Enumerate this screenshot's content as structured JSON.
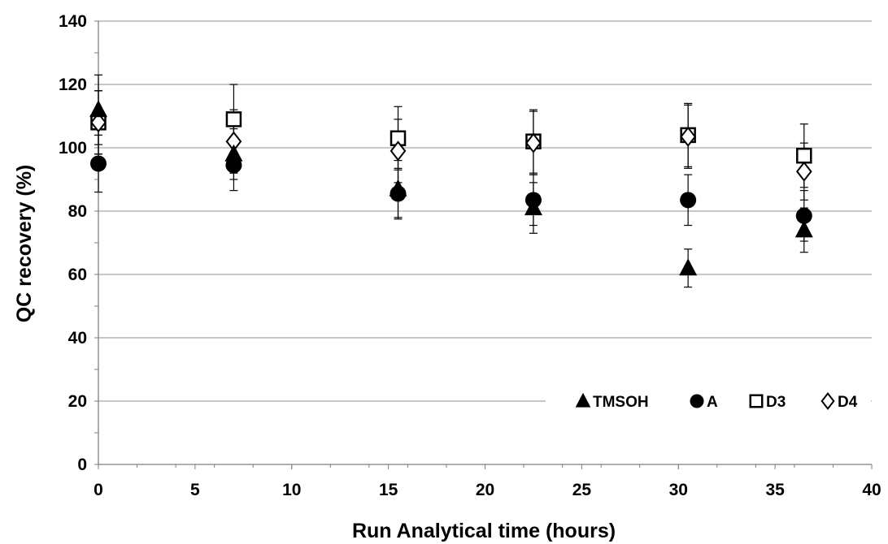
{
  "chart_data": {
    "type": "scatter",
    "xlabel": "Run Analytical time (hours)",
    "ylabel": "QC recovery (%)",
    "xlim": [
      0,
      40
    ],
    "ylim": [
      0,
      140
    ],
    "xticks": [
      0,
      5,
      10,
      15,
      20,
      25,
      30,
      35,
      40
    ],
    "yticks": [
      0,
      20,
      40,
      60,
      80,
      100,
      120,
      140
    ],
    "grid": "horizontal",
    "legend_position": "bottom-right",
    "series": [
      {
        "name": "TMSOH",
        "marker": "filled-triangle",
        "color": "#000000",
        "points": [
          {
            "x": 0,
            "y": 112,
            "err": 11
          },
          {
            "x": 7,
            "y": 98,
            "err": 8
          },
          {
            "x": 15.5,
            "y": 87,
            "err": 9
          },
          {
            "x": 22.5,
            "y": 81,
            "err": 8
          },
          {
            "x": 30.5,
            "y": 62,
            "err": 6
          },
          {
            "x": 36.5,
            "y": 74,
            "err": 7
          }
        ]
      },
      {
        "name": "A",
        "marker": "filled-circle",
        "color": "#000000",
        "points": [
          {
            "x": 0,
            "y": 95,
            "err": 9
          },
          {
            "x": 7,
            "y": 94.5,
            "err": 8
          },
          {
            "x": 15.5,
            "y": 85.5,
            "err": 8
          },
          {
            "x": 22.5,
            "y": 83.5,
            "err": 8
          },
          {
            "x": 30.5,
            "y": 83.5,
            "err": 8
          },
          {
            "x": 36.5,
            "y": 78.5,
            "err": 8
          }
        ]
      },
      {
        "name": "D3",
        "marker": "open-square",
        "color": "#000000",
        "points": [
          {
            "x": 0,
            "y": 108,
            "err": 10
          },
          {
            "x": 7,
            "y": 109,
            "err": 11
          },
          {
            "x": 15.5,
            "y": 103,
            "err": 10
          },
          {
            "x": 22.5,
            "y": 102,
            "err": 10
          },
          {
            "x": 30.5,
            "y": 104,
            "err": 10
          },
          {
            "x": 36.5,
            "y": 97.5,
            "err": 10
          }
        ]
      },
      {
        "name": "D4",
        "marker": "open-diamond",
        "color": "#000000",
        "points": [
          {
            "x": 0,
            "y": 108,
            "err": 10
          },
          {
            "x": 7,
            "y": 102,
            "err": 10
          },
          {
            "x": 15.5,
            "y": 99,
            "err": 10
          },
          {
            "x": 22.5,
            "y": 101.5,
            "err": 10
          },
          {
            "x": 30.5,
            "y": 103.5,
            "err": 10
          },
          {
            "x": 36.5,
            "y": 92.5,
            "err": 9
          }
        ]
      }
    ]
  }
}
